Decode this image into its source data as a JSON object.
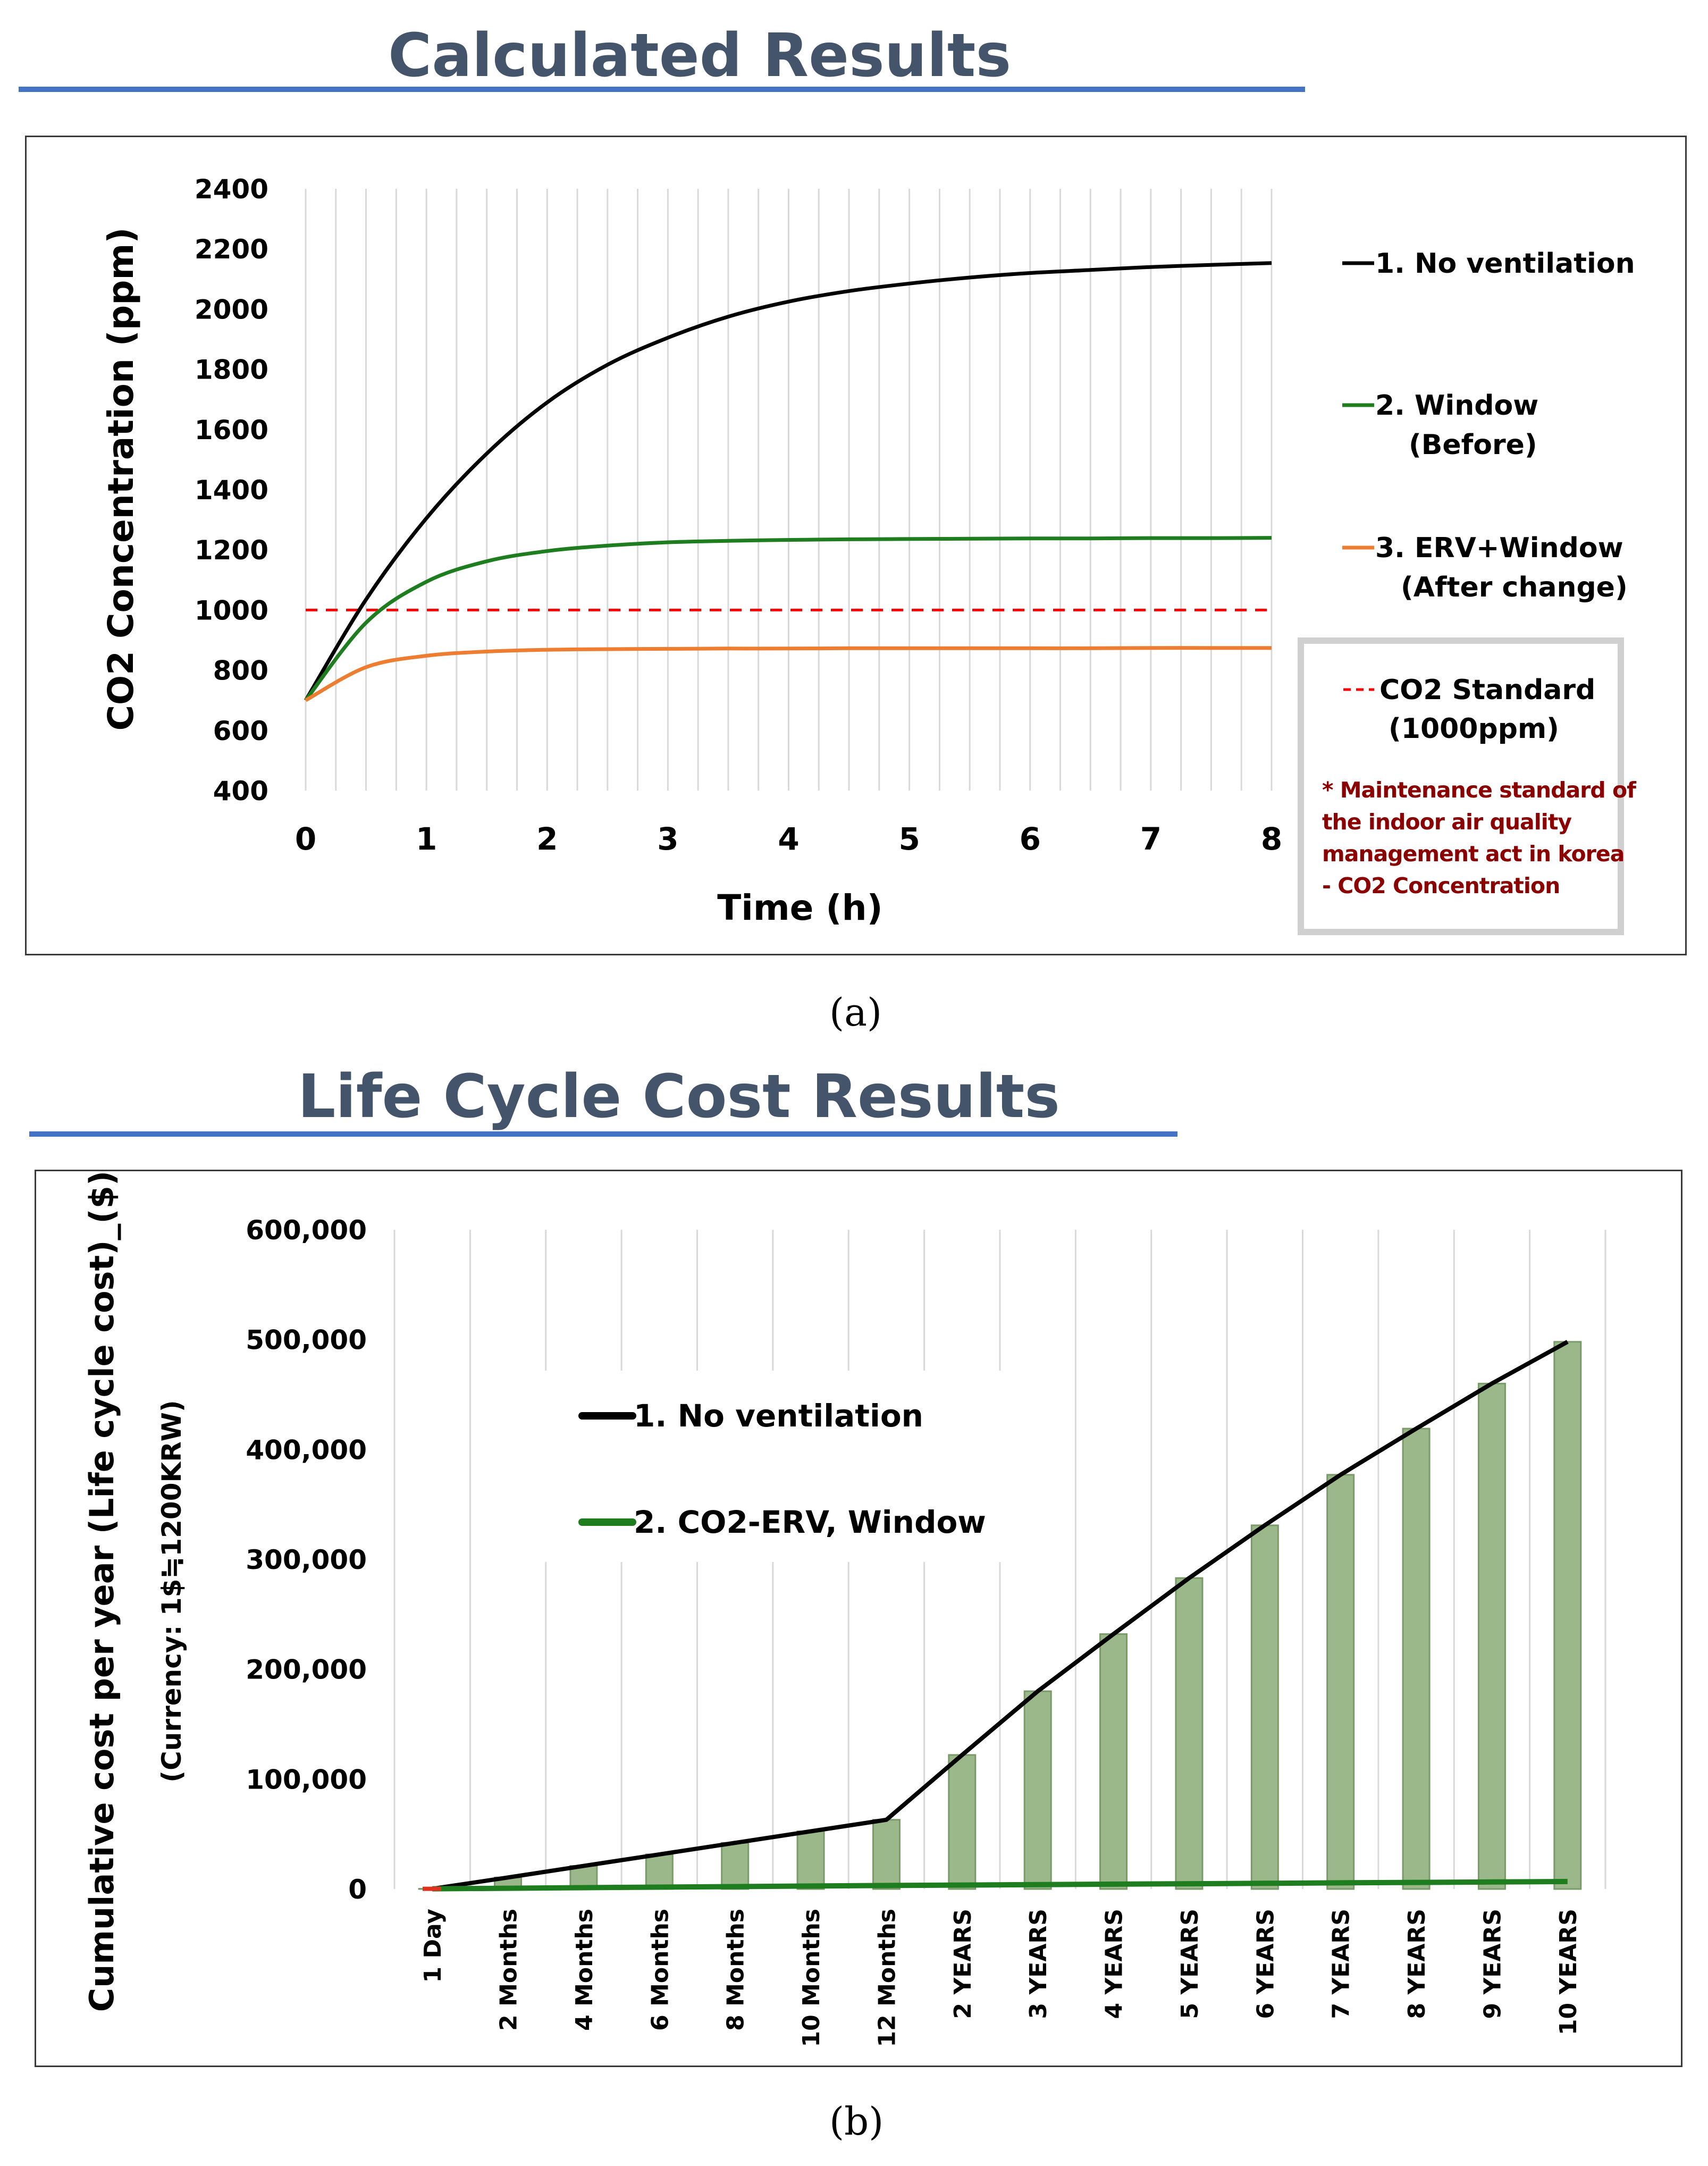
{
  "figure": {
    "top_title": "Calculated Results",
    "bottom_title": "Life Cycle Cost Results",
    "caption_a": "(a)",
    "caption_b": "(b)",
    "accent_color": "#4472c4",
    "title_color": "#44546a"
  },
  "chart_data": [
    {
      "type": "line",
      "xlabel": "Time (h)",
      "ylabel": "CO2 Concentration (ppm)",
      "xlim": [
        0,
        8
      ],
      "ylim": [
        400,
        2400
      ],
      "x_ticks": [
        "0",
        "1",
        "2",
        "3",
        "4",
        "5",
        "6",
        "7",
        "8"
      ],
      "y_ticks": [
        "2400",
        "2200",
        "2000",
        "1800",
        "1600",
        "1400",
        "1200",
        "1000",
        "800",
        "600",
        "400"
      ],
      "grid": "vertical",
      "legend_position": "right",
      "x": [
        0,
        0.5,
        1,
        1.5,
        2,
        2.5,
        3,
        3.5,
        4,
        4.5,
        5,
        5.5,
        6,
        6.5,
        7,
        7.5,
        8
      ],
      "series": [
        {
          "name": "1. No ventilation",
          "color": "#000000",
          "values": [
            700,
            1035,
            1305,
            1520,
            1690,
            1815,
            1905,
            1975,
            2025,
            2060,
            2085,
            2105,
            2120,
            2130,
            2140,
            2147,
            2153
          ]
        },
        {
          "name": "2. Window",
          "name2": "(Before)",
          "color": "#1e7d1e",
          "values": [
            700,
            958,
            1094,
            1162,
            1196,
            1214,
            1225,
            1230,
            1233,
            1235,
            1236,
            1237,
            1238,
            1238,
            1239,
            1239,
            1240
          ]
        },
        {
          "name": "3. ERV+Window",
          "name2": "(After change)",
          "color": "#ed7d31",
          "values": [
            700,
            810,
            848,
            862,
            868,
            870,
            871,
            872,
            872,
            873,
            873,
            873,
            873,
            873,
            874,
            874,
            874
          ]
        }
      ],
      "reference_line": {
        "name": "CO2 Standard",
        "name2": "(1000ppm)",
        "value": 1000,
        "color": "#ff0000"
      },
      "note": [
        "* Maintenance standard of",
        "the indoor air quality",
        "management act in korea",
        "- CO2 Concentration"
      ],
      "note_color": "#8b0000"
    },
    {
      "type": "bar",
      "ylabel": "Cumulative cost per year (Life cycle cost)_($)",
      "ylabel2": "(Currency: 1$≒1200KRW)",
      "ylim": [
        0,
        600000
      ],
      "y_ticks": [
        "600,000",
        "500,000",
        "400,000",
        "300,000",
        "200,000",
        "100,000",
        "0"
      ],
      "grid": "vertical",
      "legend_position": "center-left",
      "categories": [
        "1 Day",
        "2 Months",
        "4 Months",
        "6 Months",
        "8 Months",
        "10 Months",
        "12 Months",
        "2 YEARS",
        "3 YEARS",
        "4 YEARS",
        "5 YEARS",
        "6 YEARS",
        "7 YEARS",
        "8 YEARS",
        "9 YEARS",
        "10 YEARS"
      ],
      "bar_color": "#9bb88a",
      "bar_edge_color": "#7a9a6a",
      "series": [
        {
          "name": "1. No ventilation",
          "color": "#000000",
          "values": [
            200,
            10500,
            21000,
            31500,
            42000,
            52500,
            63000,
            122000,
            180000,
            232000,
            283000,
            331000,
            377000,
            419000,
            460000,
            498000
          ]
        },
        {
          "name": "2. CO2-ERV, Window",
          "color": "#1e7d1e",
          "values": [
            200,
            700,
            1200,
            1700,
            2200,
            2700,
            3200,
            3600,
            4000,
            4400,
            4800,
            5200,
            5600,
            6000,
            6400,
            6800
          ]
        }
      ]
    }
  ]
}
